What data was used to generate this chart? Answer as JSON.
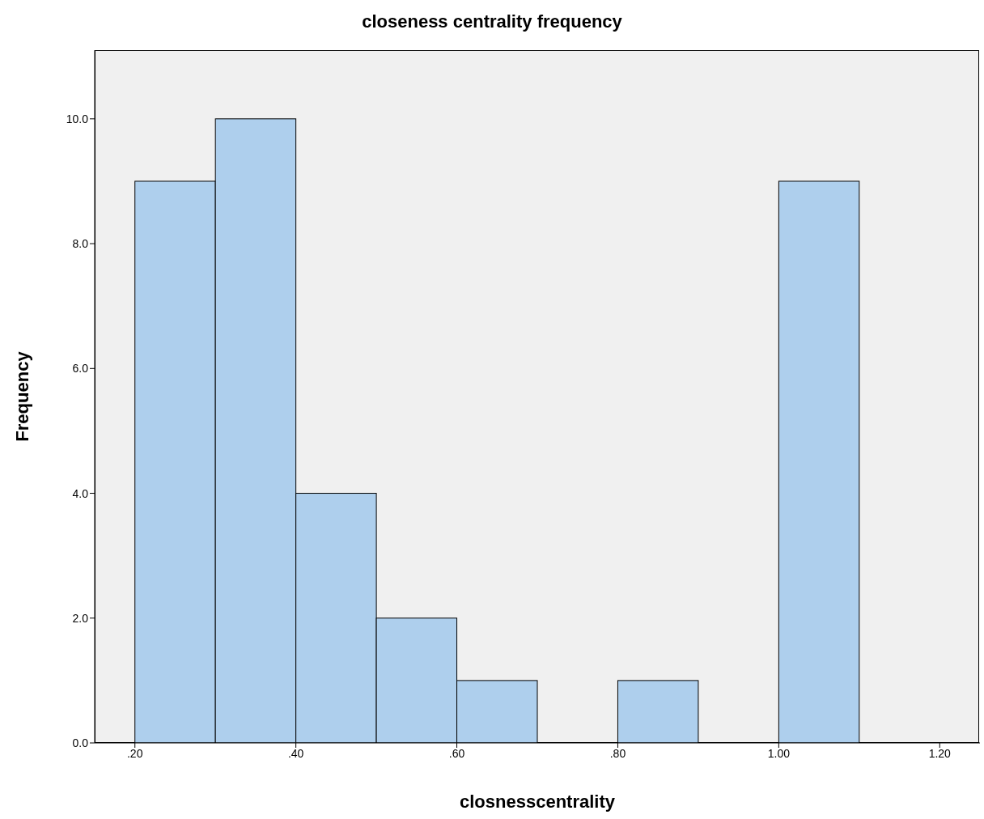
{
  "chart_data": {
    "type": "histogram",
    "title": "closeness centrality frequency",
    "xlabel": "closnesscentrality",
    "ylabel": "Frequency",
    "bins": [
      0.2,
      0.3,
      0.4,
      0.5,
      0.6,
      0.7,
      0.8,
      0.9,
      1.0,
      1.1
    ],
    "values": [
      9,
      10,
      4,
      2,
      1,
      0,
      1,
      0,
      9
    ],
    "color": "#aecfed",
    "xlim": [
      0.15,
      1.25
    ],
    "xticks": [
      {
        "value": 0.2,
        "label": ".20"
      },
      {
        "value": 0.4,
        "label": ".40"
      },
      {
        "value": 0.6,
        "label": ".60"
      },
      {
        "value": 0.8,
        "label": ".80"
      },
      {
        "value": 1.0,
        "label": "1.00"
      },
      {
        "value": 1.2,
        "label": "1.20"
      }
    ],
    "ylim": [
      0,
      11.1
    ],
    "yticks": [
      {
        "value": 0,
        "label": "0.0"
      },
      {
        "value": 2,
        "label": "2.0"
      },
      {
        "value": 4,
        "label": "4.0"
      },
      {
        "value": 6,
        "label": "6.0"
      },
      {
        "value": 8,
        "label": "8.0"
      },
      {
        "value": 10,
        "label": "10.0"
      }
    ],
    "grid": false,
    "legend": false
  }
}
